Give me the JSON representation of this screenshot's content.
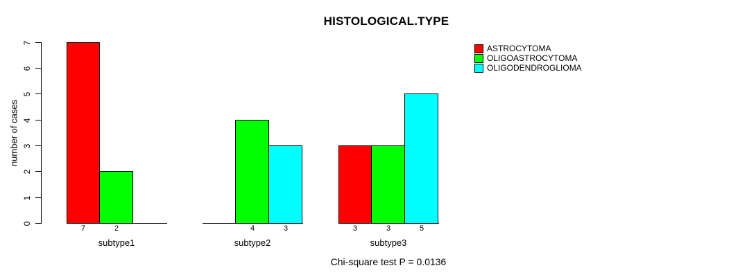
{
  "title": "HISTOLOGICAL.TYPE",
  "ylabel": "number of cases",
  "footnote": "Chi-square test P = 0.0136",
  "colors": {
    "background": "#ffffff",
    "axis": "#000000",
    "text": "#000000",
    "astrocytoma": "#ff0000",
    "oligoastrocytoma": "#00ff00",
    "oligodendroglioma": "#00ffff"
  },
  "chart_data": {
    "type": "bar",
    "title": "HISTOLOGICAL.TYPE",
    "xlabel": "",
    "ylabel": "number of cases",
    "categories": [
      "subtype1",
      "subtype2",
      "subtype3"
    ],
    "series": [
      {
        "name": "ASTROCYTOMA",
        "color": "#ff0000",
        "values": [
          7,
          0,
          3
        ],
        "bar_labels": [
          "7",
          "",
          "3"
        ]
      },
      {
        "name": "OLIGOASTROCYTOMA",
        "color": "#00ff00",
        "values": [
          2,
          4,
          3
        ],
        "bar_labels": [
          "2",
          "4",
          "3"
        ]
      },
      {
        "name": "OLIGODENDROGLIOMA",
        "color": "#00ffff",
        "values": [
          0,
          3,
          5
        ],
        "bar_labels": [
          "",
          "3",
          "5"
        ]
      }
    ],
    "yticks": [
      0,
      1,
      2,
      3,
      4,
      5,
      6,
      7
    ],
    "ylim": [
      0,
      7
    ],
    "grid": false,
    "legend_position": "top-right",
    "annotation": "Chi-square test P = 0.0136"
  }
}
